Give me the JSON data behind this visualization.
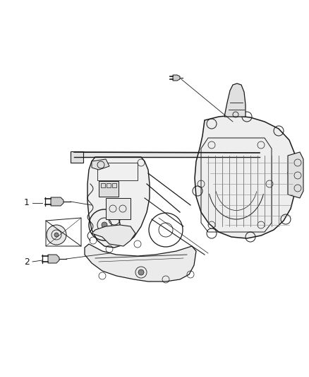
{
  "bg_color": "#ffffff",
  "line_color": "#1a1a1a",
  "fig_width": 4.38,
  "fig_height": 5.33,
  "dpi": 100,
  "label1": "1",
  "label2": "2",
  "lw": 0.9
}
